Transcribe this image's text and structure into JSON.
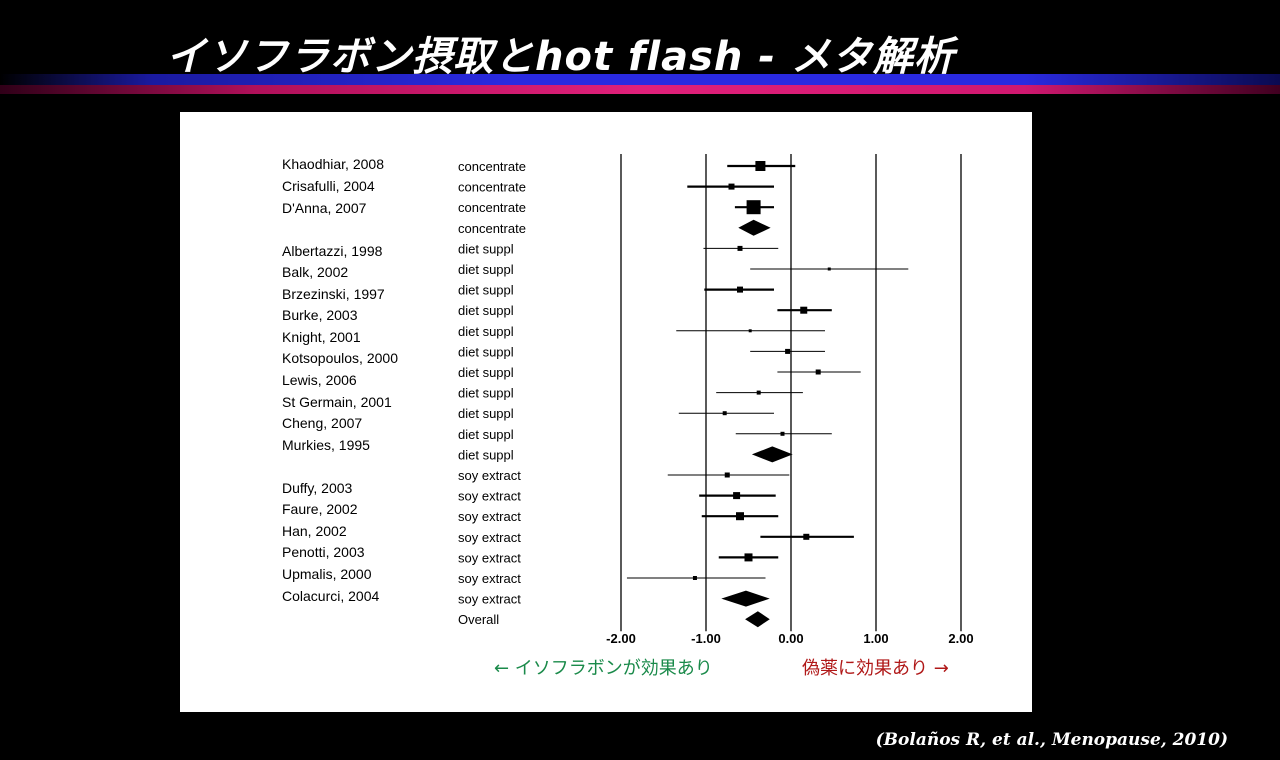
{
  "slide": {
    "title": "イソフラボン摂取とhot flash - メタ解析",
    "citation": "(Bolaños R, et al., Menopause, 2010)"
  },
  "chart_data": {
    "type": "forest",
    "x_ticks": [
      "-2.00",
      "-1.00",
      "0.00",
      "1.00",
      "2.00"
    ],
    "xlim": [
      -2,
      2
    ],
    "annotation_left": "← イソフラボンが効果あり",
    "annotation_right": "偽薬に効果あり →",
    "colors": {
      "left_annotation": "#1a8a4a",
      "right_annotation": "#b01818"
    },
    "studies": [
      {
        "name": "Khaodhiar, 2008"
      },
      {
        "name": "Crisafulli, 2004"
      },
      {
        "name": "D'Anna, 2007"
      },
      {
        "name": "Albertazzi, 1998"
      },
      {
        "name": "Balk, 2002"
      },
      {
        "name": "Brzezinski, 1997"
      },
      {
        "name": "Burke, 2003"
      },
      {
        "name": "Knight, 2001"
      },
      {
        "name": "Kotsopoulos, 2000"
      },
      {
        "name": "Lewis, 2006"
      },
      {
        "name": "St Germain, 2001"
      },
      {
        "name": "Cheng, 2007"
      },
      {
        "name": "Murkies, 1995"
      },
      {
        "name": "Duffy, 2003"
      },
      {
        "name": "Faure, 2002"
      },
      {
        "name": "Han, 2002"
      },
      {
        "name": "Penotti, 2003"
      },
      {
        "name": "Upmalis, 2000"
      },
      {
        "name": "Colacurci, 2004"
      }
    ],
    "rows": [
      {
        "group": "concentrate",
        "kind": "study",
        "est": -0.36,
        "lo": -0.75,
        "hi": 0.05,
        "size": 5
      },
      {
        "group": "concentrate",
        "kind": "study",
        "est": -0.7,
        "lo": -1.22,
        "hi": -0.2,
        "size": 3
      },
      {
        "group": "concentrate",
        "kind": "study",
        "est": -0.44,
        "lo": -0.66,
        "hi": -0.2,
        "size": 7
      },
      {
        "group": "concentrate",
        "kind": "summary",
        "est": -0.44,
        "lo": -0.62,
        "hi": -0.24
      },
      {
        "group": "diet suppl",
        "kind": "study",
        "est": -0.6,
        "lo": -1.03,
        "hi": -0.15,
        "size": 2.5
      },
      {
        "group": "diet suppl",
        "kind": "study",
        "est": 0.45,
        "lo": -0.48,
        "hi": 1.38,
        "size": 1.5
      },
      {
        "group": "diet suppl",
        "kind": "study",
        "est": -0.6,
        "lo": -1.02,
        "hi": -0.2,
        "size": 3
      },
      {
        "group": "diet suppl",
        "kind": "study",
        "est": 0.15,
        "lo": -0.16,
        "hi": 0.48,
        "size": 3.5
      },
      {
        "group": "diet suppl",
        "kind": "study",
        "est": -0.48,
        "lo": -1.35,
        "hi": 0.4,
        "size": 1.5
      },
      {
        "group": "diet suppl",
        "kind": "study",
        "est": -0.04,
        "lo": -0.48,
        "hi": 0.4,
        "size": 2.5
      },
      {
        "group": "diet suppl",
        "kind": "study",
        "est": 0.32,
        "lo": -0.16,
        "hi": 0.82,
        "size": 2.5
      },
      {
        "group": "diet suppl",
        "kind": "study",
        "est": -0.38,
        "lo": -0.88,
        "hi": 0.14,
        "size": 2
      },
      {
        "group": "diet suppl",
        "kind": "study",
        "est": -0.78,
        "lo": -1.32,
        "hi": -0.2,
        "size": 2
      },
      {
        "group": "diet suppl",
        "kind": "study",
        "est": -0.1,
        "lo": -0.65,
        "hi": 0.48,
        "size": 2
      },
      {
        "group": "diet suppl",
        "kind": "summary",
        "est": -0.22,
        "lo": -0.46,
        "hi": 0.02
      },
      {
        "group": "soy extract",
        "kind": "study",
        "est": -0.75,
        "lo": -1.45,
        "hi": -0.02,
        "size": 2.5
      },
      {
        "group": "soy extract",
        "kind": "study",
        "est": -0.64,
        "lo": -1.08,
        "hi": -0.18,
        "size": 3.5
      },
      {
        "group": "soy extract",
        "kind": "study",
        "est": -0.6,
        "lo": -1.05,
        "hi": -0.15,
        "size": 4
      },
      {
        "group": "soy extract",
        "kind": "study",
        "est": 0.18,
        "lo": -0.36,
        "hi": 0.74,
        "size": 3
      },
      {
        "group": "soy extract",
        "kind": "study",
        "est": -0.5,
        "lo": -0.85,
        "hi": -0.15,
        "size": 4
      },
      {
        "group": "soy extract",
        "kind": "study",
        "est": -1.13,
        "lo": -1.93,
        "hi": -0.3,
        "size": 2
      },
      {
        "group": "soy extract",
        "kind": "summary",
        "est": -0.53,
        "lo": -0.82,
        "hi": -0.25
      },
      {
        "group": "Overall",
        "kind": "summary",
        "est": -0.39,
        "lo": -0.54,
        "hi": -0.25
      }
    ]
  }
}
